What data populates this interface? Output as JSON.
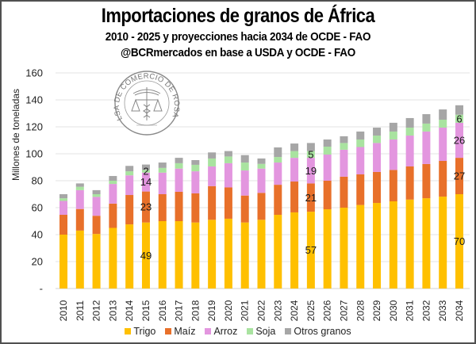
{
  "header": {
    "title": "Importaciones de granos de África",
    "subtitle": "2010 - 2025 y proyecciones hacia 2034 de OCDE - FAO",
    "source": "@BCRmercados en base a USDA y OCDE - FAO"
  },
  "seal": {
    "text": "BOLSA DE COMERCIO DE ROSARIO"
  },
  "chart_data": {
    "type": "bar",
    "stacked": true,
    "title": "Importaciones de granos de África",
    "xlabel": "",
    "ylabel": "Millones de toneladas",
    "ylim": [
      0,
      160
    ],
    "yticks": [
      0,
      20,
      40,
      60,
      80,
      100,
      120,
      140,
      160
    ],
    "ytick_labels": [
      "-",
      "20",
      "40",
      "60",
      "80",
      "100",
      "120",
      "140",
      "160"
    ],
    "grid": true,
    "legend_position": "bottom",
    "categories": [
      "2010",
      "2011",
      "2012",
      "2013",
      "2014",
      "2015",
      "2016",
      "2017",
      "2018",
      "2019",
      "2020",
      "2021",
      "2022",
      "2023",
      "2024",
      "2025",
      "2026",
      "2027",
      "2028",
      "2029",
      "2030",
      "2031",
      "2032",
      "2033",
      "2034"
    ],
    "series": [
      {
        "name": "Trigo",
        "color": "#FFC000",
        "values": [
          40,
          43,
          40.5,
          45,
          47.6,
          49,
          50,
          50,
          49,
          51,
          51.8,
          49,
          51,
          54.7,
          56.5,
          57,
          58.8,
          60,
          62,
          63.5,
          64.7,
          66,
          67,
          68.2,
          70
        ]
      },
      {
        "name": "Maíz",
        "color": "#E8702A",
        "values": [
          14.7,
          16,
          13.5,
          18,
          21.8,
          23,
          20,
          21.8,
          21.6,
          25,
          23.2,
          20,
          20,
          22.3,
          22.9,
          21,
          21.2,
          23,
          22.7,
          23,
          23.3,
          24.6,
          25.4,
          26.5,
          27
        ]
      },
      {
        "name": "Arroz",
        "color": "#E396DF",
        "values": [
          10.3,
          14,
          14,
          14.6,
          14.6,
          14,
          16,
          17.2,
          16.4,
          14.6,
          18,
          18.6,
          18,
          16.5,
          17.6,
          19,
          19.4,
          20,
          20.3,
          21.5,
          22.6,
          22.9,
          24.1,
          24.7,
          26
        ]
      },
      {
        "name": "Soja",
        "color": "#A9E3A0",
        "values": [
          2,
          2.5,
          2,
          2.4,
          3,
          2,
          3.5,
          4,
          4.8,
          5.9,
          5,
          5.9,
          3.5,
          4.1,
          5,
          5,
          5.9,
          5,
          5.6,
          5.5,
          5.9,
          5.9,
          5.9,
          5.9,
          6
        ]
      },
      {
        "name": "Otros granos",
        "color": "#A6A6A6",
        "values": [
          3,
          2.5,
          3,
          3.5,
          4,
          4,
          4,
          4,
          3.5,
          4.5,
          4,
          5.5,
          4,
          7.1,
          5.6,
          6,
          5.3,
          5,
          5.9,
          5.9,
          6.5,
          7.1,
          7,
          7.6,
          7
        ]
      }
    ],
    "data_labels": [
      {
        "category": "2015",
        "series": "Trigo",
        "text": "49"
      },
      {
        "category": "2015",
        "series": "Maíz",
        "text": "23"
      },
      {
        "category": "2015",
        "series": "Arroz",
        "text": "14"
      },
      {
        "category": "2015",
        "series": "Soja",
        "text": "2"
      },
      {
        "category": "2025",
        "series": "Trigo",
        "text": "57"
      },
      {
        "category": "2025",
        "series": "Maíz",
        "text": "21"
      },
      {
        "category": "2025",
        "series": "Arroz",
        "text": "19"
      },
      {
        "category": "2025",
        "series": "Soja",
        "text": "5"
      },
      {
        "category": "2034",
        "series": "Trigo",
        "text": "70"
      },
      {
        "category": "2034",
        "series": "Maíz",
        "text": "27"
      },
      {
        "category": "2034",
        "series": "Arroz",
        "text": "26"
      },
      {
        "category": "2034",
        "series": "Soja",
        "text": "6"
      }
    ]
  },
  "legend": [
    {
      "label": "Trigo",
      "color": "#FFC000"
    },
    {
      "label": "Maíz",
      "color": "#E8702A"
    },
    {
      "label": "Arroz",
      "color": "#E396DF"
    },
    {
      "label": "Soja",
      "color": "#A9E3A0"
    },
    {
      "label": "Otros granos",
      "color": "#A6A6A6"
    }
  ]
}
